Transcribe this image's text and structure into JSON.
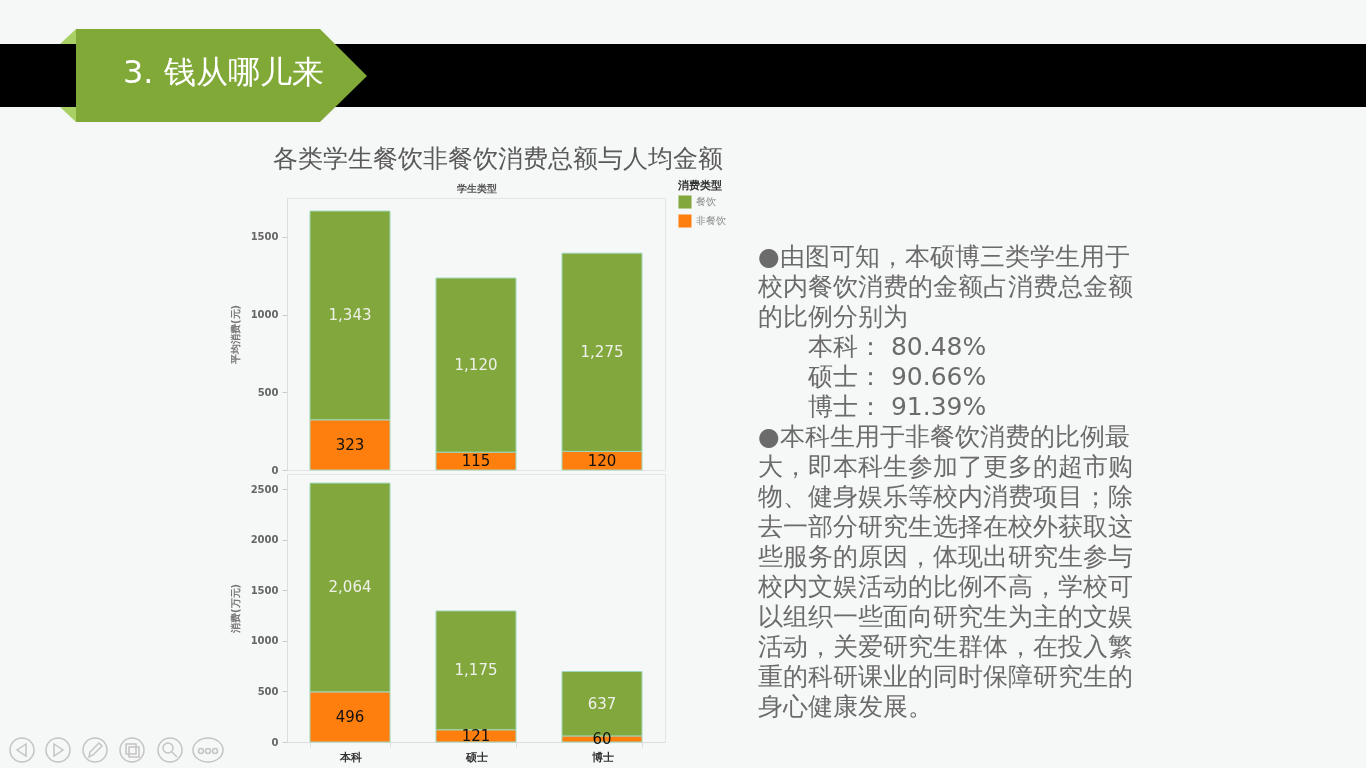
{
  "chart_data": [
    {
      "type": "other",
      "title": "3. 钱从哪儿来"
    },
    {
      "type": "bar",
      "title": "各类学生餐饮非餐饮消费总额与人均金额",
      "xlabel": "学生类型",
      "ylabel": "平均消费(元)",
      "legend_title": "消费类型",
      "categories": [
        null,
        null,
        null
      ],
      "stacked": true,
      "series": [
        {
          "name": "非餐饮",
          "color": "#ff7f0e",
          "values": [
            323,
            115,
            120
          ],
          "value_labels": [
            "323",
            "115",
            "120"
          ]
        },
        {
          "name": "餐饮",
          "color": "#82a73c",
          "values": [
            1343,
            1120,
            1275
          ],
          "value_labels": [
            "1,343",
            "1,120",
            "1,275"
          ]
        }
      ],
      "ylim": [
        0,
        1750
      ],
      "yticks": [
        0,
        500,
        1000,
        1500
      ],
      "legend": "top right",
      "tick_labels": "y"
    },
    {
      "type": "bar",
      "ylabel": "消费(万元)",
      "categories": [
        "本科",
        "硕士",
        "博士"
      ],
      "stacked": true,
      "series": [
        {
          "color": "#ff7f0e",
          "values": [
            496,
            121,
            60
          ],
          "value_labels": [
            "496",
            "121",
            "60"
          ]
        },
        {
          "color": "#82a73c",
          "values": [
            2064,
            1175,
            637
          ],
          "value_labels": [
            "2,064",
            "1,175",
            "637"
          ]
        }
      ],
      "ylim": [
        0,
        2650
      ],
      "yticks": [
        0,
        500,
        1000,
        1500,
        2000,
        2500
      ]
    },
    {
      "type": "other",
      "annotations": [
        "●由图可知，本硕博三类学生用于校内餐饮消费的金额占消费总金额的比例分别为",
        "本科： 80.48%",
        "硕士： 90.66%",
        "博士： 91.39%",
        "●本科生用于非餐饮消费的比例最大，即本科生参加了更多的超市购物、健身娱乐等校内消费项目；除去一部分研究生选择在校外获取这些服务的原因，体现出研究生参与校内文娱活动的比例不高，学校可以组织一些面向研究生为主的文娱活动，关爱研究生群体，在投入繁重的科研课业的同时保障研究生的身心健康发展。"
      ]
    }
  ]
}
